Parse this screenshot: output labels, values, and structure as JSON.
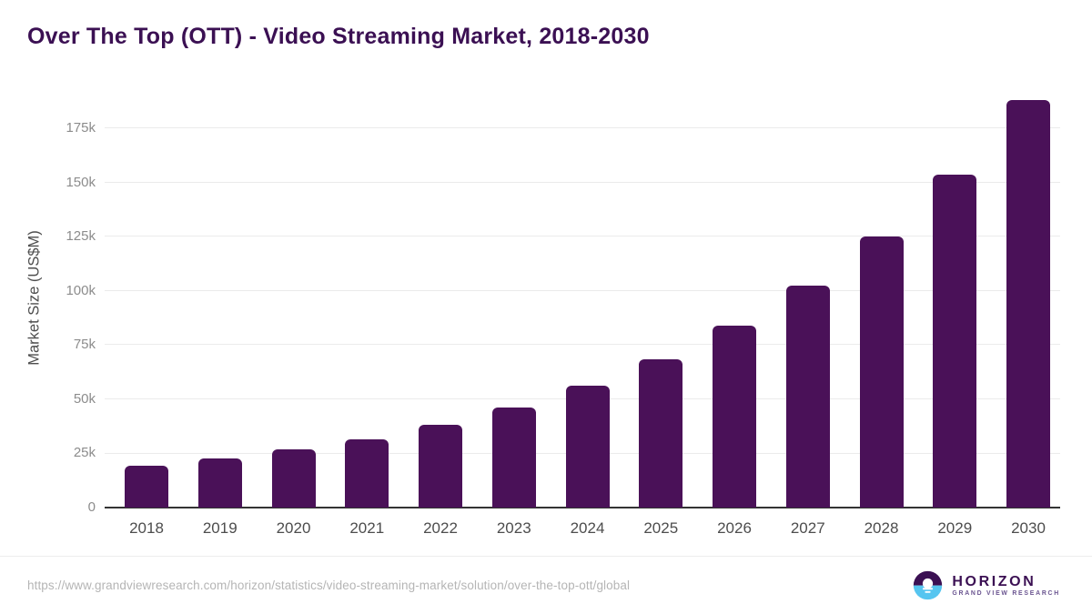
{
  "chart_data": {
    "type": "bar",
    "title": "Over The Top (OTT) - Video Streaming Market, 2018-2030",
    "xlabel": "",
    "ylabel": "Market Size (US$M)",
    "categories": [
      "2018",
      "2019",
      "2020",
      "2021",
      "2022",
      "2023",
      "2024",
      "2025",
      "2026",
      "2027",
      "2028",
      "2029",
      "2030"
    ],
    "values": [
      19200,
      22600,
      26700,
      31700,
      38100,
      46100,
      56300,
      68600,
      84000,
      102600,
      125400,
      153700,
      188000
    ],
    "ylim": [
      0,
      194500
    ],
    "yticks": [
      0,
      25000,
      50000,
      75000,
      100000,
      125000,
      150000,
      175000
    ],
    "ytick_labels": [
      "0",
      "25k",
      "50k",
      "75k",
      "100k",
      "125k",
      "150k",
      "175k"
    ],
    "grid": "horizontal",
    "legend": "none",
    "bar_color": "#4a1158"
  },
  "footer": {
    "source_url": "https://www.grandviewresearch.com/horizon/statistics/video-streaming-market/solution/over-the-top-ott/global",
    "logo": {
      "name": "HORIZON",
      "subtitle": "GRAND VIEW RESEARCH"
    }
  },
  "colors": {
    "title_text": "#3b1053",
    "bar_fill": "#4a1158",
    "axis_line": "#333333",
    "gridline": "#ebebeb",
    "x_tick_text": "#4d4d4d",
    "y_tick_text": "#8c8c8c",
    "y_axis_title_text": "#4d4d4d",
    "source_text": "#b5b5b5",
    "logo_purple": "#3b1053",
    "logo_blue": "#56c5f0",
    "logo_subtitle_text": "#6a5490"
  }
}
